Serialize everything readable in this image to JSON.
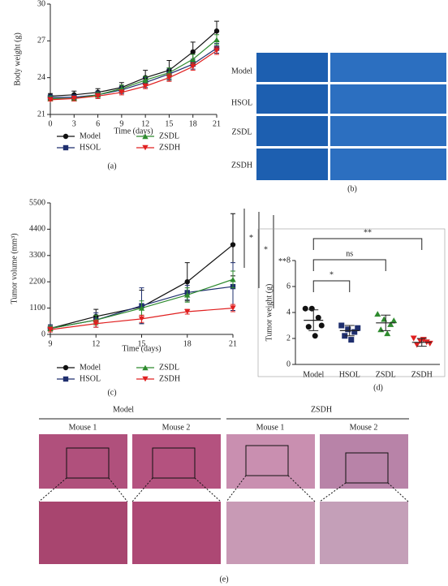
{
  "chart_data": [
    {
      "type": "line",
      "xlabel": "Time (days)",
      "ylabel": "Body weight (g)",
      "x": [
        0,
        3,
        6,
        9,
        12,
        15,
        18,
        21
      ],
      "xlim": [
        0,
        21
      ],
      "xticks": [
        0,
        3,
        6,
        9,
        12,
        15,
        18,
        21
      ],
      "ylim": [
        21,
        30
      ],
      "yticks": [
        21,
        24,
        27,
        30
      ],
      "series": [
        {
          "name": "Model",
          "color": "#111111",
          "marker": "circle",
          "values": [
            22.5,
            22.6,
            22.8,
            23.2,
            24.0,
            24.6,
            26.1,
            27.8
          ],
          "errors": [
            0.2,
            0.3,
            0.3,
            0.4,
            0.6,
            0.8,
            0.8,
            0.8
          ]
        },
        {
          "name": "HSOL",
          "color": "#1f2f6e",
          "marker": "square",
          "values": [
            22.4,
            22.4,
            22.6,
            23.0,
            23.6,
            24.3,
            25.1,
            26.4
          ],
          "errors": [
            0.2,
            0.2,
            0.3,
            0.3,
            0.4,
            0.4,
            0.4,
            0.4
          ]
        },
        {
          "name": "ZSDL",
          "color": "#2e8b2e",
          "marker": "triangle-up",
          "values": [
            22.3,
            22.3,
            22.6,
            23.1,
            23.8,
            24.4,
            25.5,
            27.1
          ],
          "errors": [
            0.2,
            0.2,
            0.2,
            0.3,
            0.3,
            0.4,
            0.4,
            0.4
          ]
        },
        {
          "name": "ZSDH",
          "color": "#e02020",
          "marker": "triangle-down",
          "values": [
            22.2,
            22.3,
            22.5,
            22.8,
            23.3,
            24.0,
            24.9,
            26.2
          ],
          "errors": [
            0.1,
            0.2,
            0.2,
            0.2,
            0.2,
            0.3,
            0.3,
            0.3
          ]
        }
      ]
    },
    {
      "type": "line",
      "xlabel": "Time (days)",
      "ylabel": "Tumor volume (mm³)",
      "x": [
        9,
        12,
        15,
        18,
        21
      ],
      "xlim": [
        9,
        21
      ],
      "xticks": [
        9,
        12,
        15,
        18,
        21
      ],
      "ylim": [
        0,
        5500
      ],
      "yticks": [
        0,
        1100,
        2200,
        3300,
        4400,
        5500
      ],
      "series": [
        {
          "name": "Model",
          "color": "#111111",
          "marker": "circle",
          "values": [
            250,
            750,
            1150,
            2200,
            3750
          ],
          "errors": [
            150,
            300,
            700,
            800,
            1300
          ]
        },
        {
          "name": "HSOL",
          "color": "#1f2f6e",
          "marker": "square",
          "values": [
            250,
            600,
            1200,
            1750,
            2000
          ],
          "errors": [
            150,
            300,
            750,
            300,
            1000
          ]
        },
        {
          "name": "ZSDL",
          "color": "#2e8b2e",
          "marker": "triangle-up",
          "values": [
            250,
            600,
            1100,
            1650,
            2300
          ],
          "errors": [
            100,
            200,
            300,
            300,
            350
          ]
        },
        {
          "name": "ZSDH",
          "color": "#e02020",
          "marker": "triangle-down",
          "values": [
            200,
            450,
            650,
            950,
            1100
          ],
          "errors": [
            100,
            150,
            150,
            100,
            150
          ]
        }
      ],
      "annotations": [
        {
          "text": "*",
          "color": "#2e8b2e"
        },
        {
          "text": "*",
          "color": "#1f2f6e"
        },
        {
          "text": "**",
          "color": "#e02020"
        }
      ]
    },
    {
      "type": "dot",
      "ylabel": "Tumor weight (g)",
      "categories": [
        "Model",
        "HSOL",
        "ZSDL",
        "ZSDH"
      ],
      "ylim": [
        0,
        8
      ],
      "yticks": [
        0,
        2,
        4,
        6,
        8
      ],
      "series": [
        {
          "name": "Model",
          "color": "#111111",
          "marker": "circle",
          "points": [
            4.3,
            4.3,
            3.6,
            2.9,
            2.2,
            3.0
          ],
          "mean": 3.4,
          "sd": 0.8
        },
        {
          "name": "HSOL",
          "color": "#1f2f6e",
          "marker": "square",
          "points": [
            3.0,
            2.7,
            2.5,
            2.2,
            1.9,
            2.8
          ],
          "mean": 2.6,
          "sd": 0.4
        },
        {
          "name": "ZSDL",
          "color": "#2e8b2e",
          "marker": "triangle-up",
          "points": [
            3.9,
            3.5,
            3.1,
            2.7,
            2.4,
            3.4
          ],
          "mean": 3.2,
          "sd": 0.6
        },
        {
          "name": "ZSDH",
          "color": "#e02020",
          "marker": "triangle-down",
          "points": [
            2.0,
            1.8,
            1.7,
            1.5,
            1.9,
            1.6
          ],
          "mean": 1.7,
          "sd": 0.3
        }
      ],
      "comparisons": [
        {
          "text": "*",
          "color": "#3a50c8"
        },
        {
          "text": "ns",
          "color": "#222222"
        },
        {
          "text": "**",
          "color": "#e02020"
        }
      ]
    }
  ],
  "panels": {
    "a": "(a)",
    "b": "(b)",
    "c": "(c)",
    "d": "(d)",
    "e": "(e)"
  },
  "photos_b": {
    "rows": [
      "Model",
      "HSOL",
      "ZSDL",
      "ZSDH"
    ]
  },
  "photos_e": {
    "groups": [
      "Model",
      "ZSDH"
    ],
    "mice": [
      "Mouse 1",
      "Mouse 2",
      "Mouse 1",
      "Mouse 2"
    ]
  }
}
